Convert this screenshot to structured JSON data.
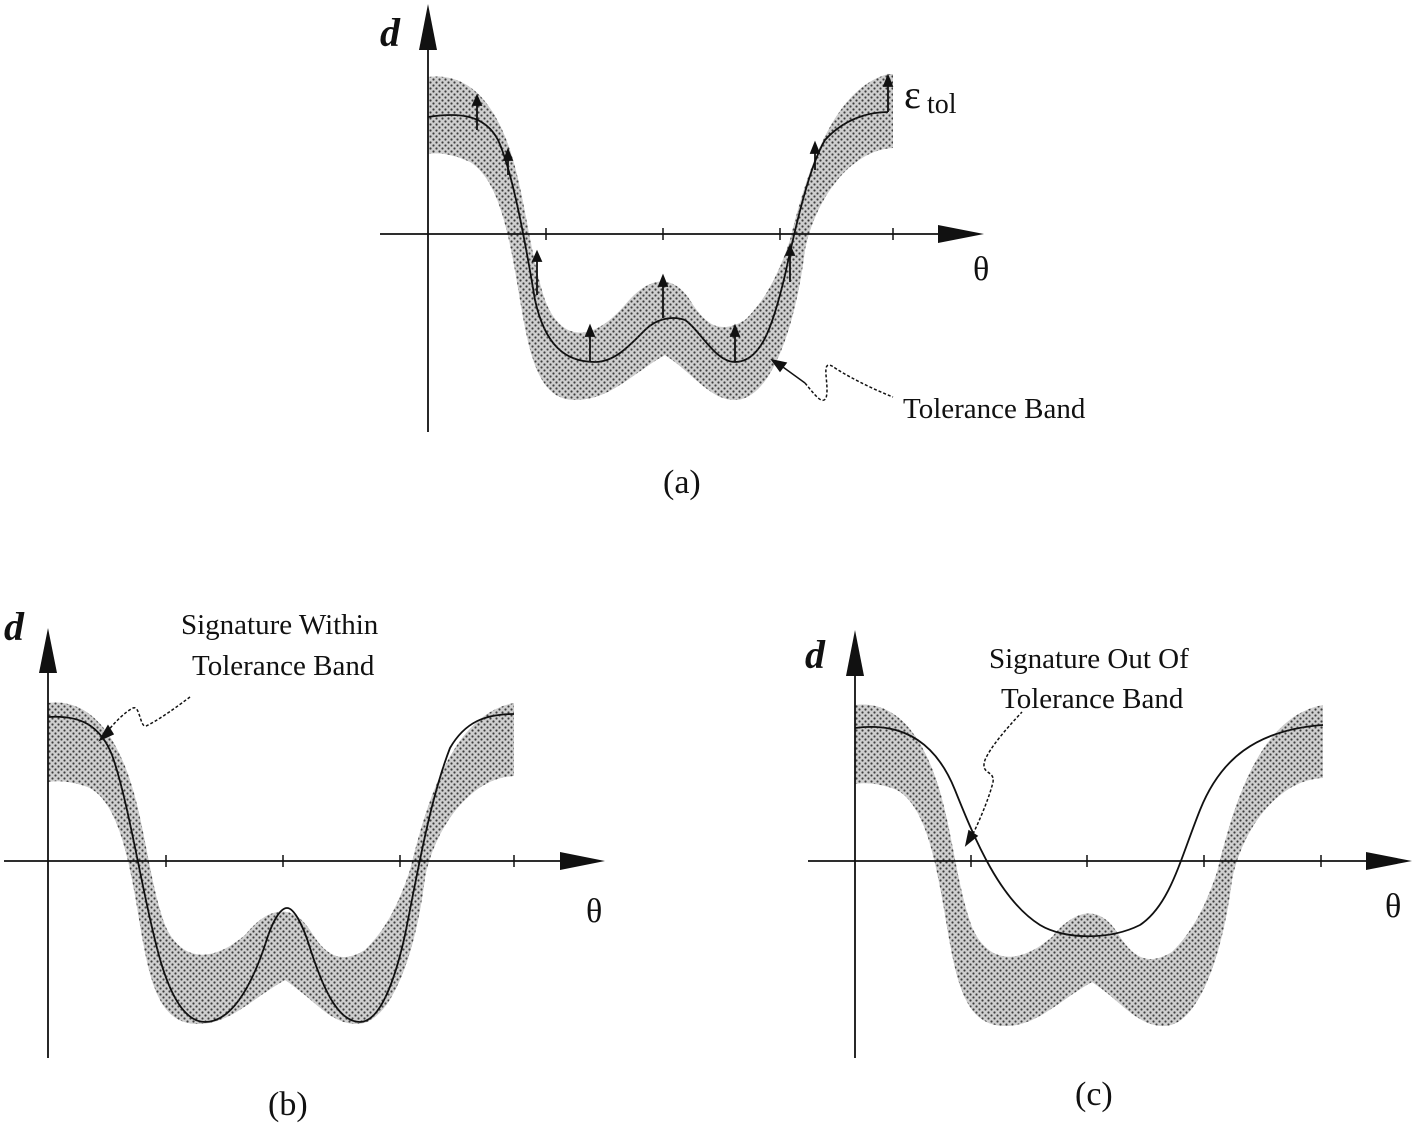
{
  "colors": {
    "ink": "#111111",
    "band_fill": "#c9c9c9",
    "band_dots": "#4a4a4a",
    "background": "#ffffff"
  },
  "icons": [
    "axis-arrow",
    "dotted-tolerance-band",
    "squiggle-leader-line"
  ],
  "panel_a": {
    "y_label": "d",
    "x_label": "θ",
    "epsilon_symbol": "ε",
    "epsilon_subscript": "tol",
    "band_label": "Tolerance Band",
    "caption": "(a)"
  },
  "panel_b": {
    "y_label": "d",
    "x_label": "θ",
    "annotation_line1": "Signature Within",
    "annotation_line2": "Tolerance Band",
    "caption": "(b)"
  },
  "panel_c": {
    "y_label": "d",
    "x_label": "θ",
    "annotation_line1": "Signature Out Of",
    "annotation_line2": "Tolerance Band",
    "caption": "(c)"
  }
}
